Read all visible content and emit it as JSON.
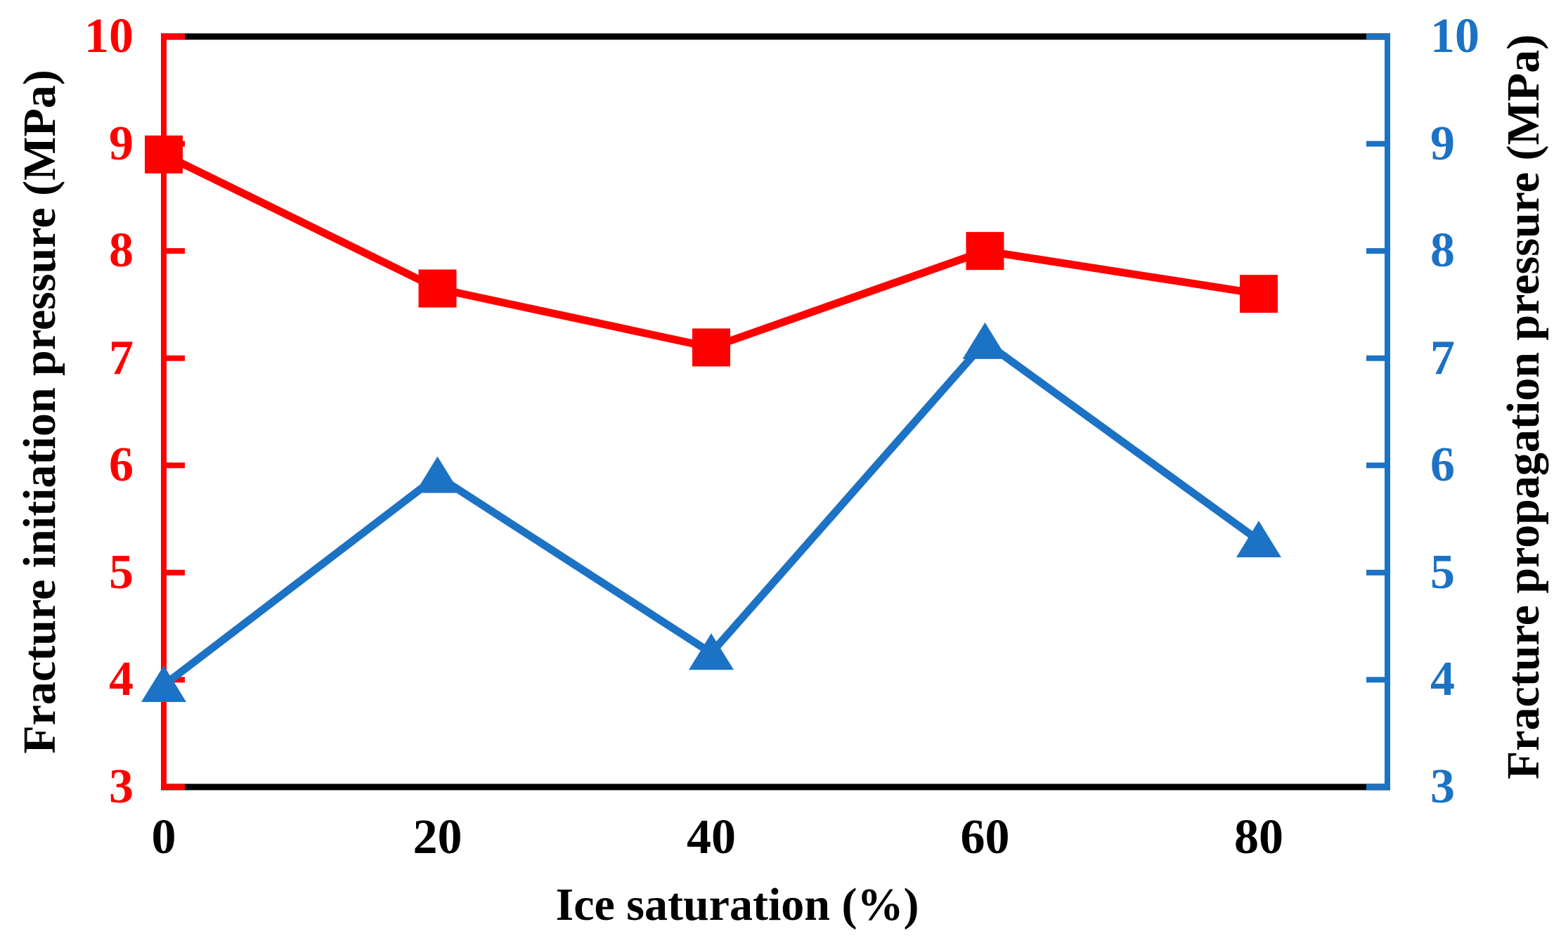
{
  "figure": {
    "background": "#ffffff",
    "frame_color": "#000000"
  },
  "chart_data": {
    "type": "line",
    "title": "",
    "xlabel": "Ice saturation (%)",
    "x": [
      0,
      20,
      40,
      60,
      80
    ],
    "x_tick_labels": [
      "0",
      "20",
      "40",
      "60",
      "80"
    ],
    "xlim": [
      0,
      89.4
    ],
    "grid": false,
    "legend": "none",
    "left_axis": {
      "label": "Fracture initiation pressure (MPa)",
      "color": "#ff0000",
      "min": 3,
      "max": 10,
      "ticks": [
        3,
        4,
        5,
        6,
        7,
        8,
        9,
        10
      ]
    },
    "right_axis": {
      "label": "Fracture propagation pressure (MPa)",
      "color": "#1c72c4",
      "min": 3,
      "max": 10,
      "ticks": [
        3,
        4,
        5,
        6,
        7,
        8,
        9,
        10
      ]
    },
    "series": [
      {
        "name": "Fracture initiation pressure",
        "axis": "left",
        "marker": "square",
        "color": "#ff0000",
        "values": [
          8.9,
          7.65,
          7.1,
          8.0,
          7.6
        ]
      },
      {
        "name": "Fracture propagation pressure",
        "axis": "right",
        "marker": "triangle-up",
        "color": "#1c72c4",
        "values": [
          3.95,
          5.9,
          4.25,
          7.15,
          5.3
        ]
      }
    ]
  }
}
